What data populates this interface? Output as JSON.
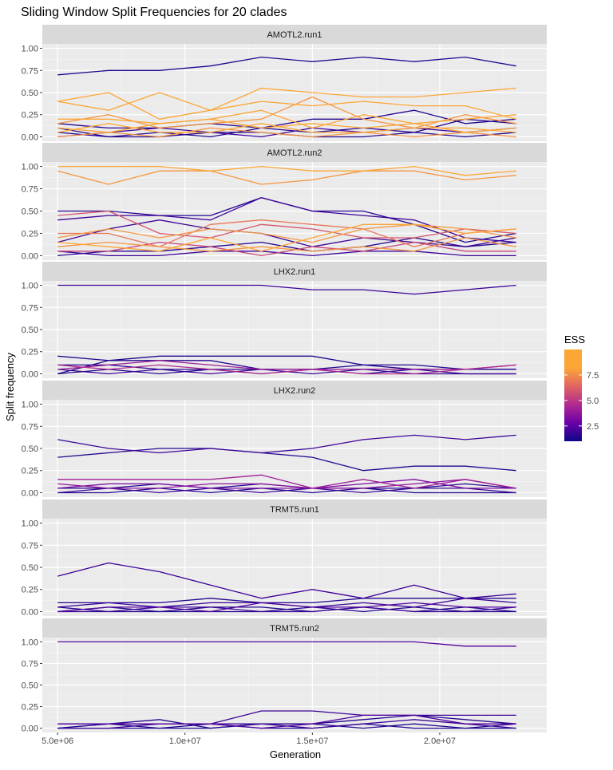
{
  "chart_data": {
    "type": "line",
    "title": "Sliding Window Split Frequencies for 20 clades",
    "xlabel": "Generation",
    "ylabel": "Split frequency",
    "xlim": [
      4400000,
      24200000
    ],
    "ylim": [
      -0.05,
      1.05
    ],
    "x_ticks": [
      5000000,
      10000000,
      15000000,
      20000000
    ],
    "x_tick_labels": [
      "5.0e+06",
      "1.0e+07",
      "1.5e+07",
      "2.0e+07"
    ],
    "y_ticks": [
      0,
      0.25,
      0.5,
      0.75,
      1
    ],
    "y_tick_labels": [
      "0.00",
      "0.25",
      "0.50",
      "0.75",
      "1.00"
    ],
    "grid": true,
    "x": [
      5000000,
      7000000,
      9000000,
      11000000,
      13000000,
      15000000,
      17000000,
      19000000,
      21000000,
      23000000
    ],
    "legend": {
      "title": "ESS",
      "placement": "right",
      "colorbar_ticks": [
        2.5,
        5.0,
        7.5
      ],
      "colorbar_range": [
        1,
        10
      ],
      "colors": [
        "#0d0887",
        "#6a00a8",
        "#b12a90",
        "#e16462",
        "#fca636",
        "#f0f921"
      ]
    },
    "panels": [
      {
        "strip": "AMOTL2.run1",
        "series": [
          {
            "ess": 1.5,
            "values": [
              0.7,
              0.75,
              0.75,
              0.8,
              0.9,
              0.85,
              0.9,
              0.85,
              0.9,
              0.8
            ]
          },
          {
            "ess": 9.0,
            "values": [
              0.4,
              0.5,
              0.2,
              0.3,
              0.55,
              0.5,
              0.45,
              0.45,
              0.5,
              0.55
            ]
          },
          {
            "ess": 9.0,
            "values": [
              0.4,
              0.3,
              0.5,
              0.3,
              0.4,
              0.35,
              0.4,
              0.35,
              0.35,
              0.2
            ]
          },
          {
            "ess": 9.0,
            "values": [
              0.2,
              0.2,
              0.15,
              0.2,
              0.3,
              0.1,
              0.25,
              0.15,
              0.2,
              0.25
            ]
          },
          {
            "ess": 8.5,
            "values": [
              0.15,
              0.25,
              0.1,
              0.15,
              0.2,
              0.45,
              0.2,
              0.1,
              0.25,
              0.15
            ]
          },
          {
            "ess": 9.0,
            "values": [
              0.1,
              0.05,
              0.15,
              0.2,
              0.1,
              0.15,
              0.1,
              0.15,
              0.05,
              0.1
            ]
          },
          {
            "ess": 9.0,
            "values": [
              0.05,
              0.15,
              0.05,
              0.05,
              0.15,
              0.05,
              0.05,
              0.1,
              0.1,
              0.05
            ]
          },
          {
            "ess": 8.5,
            "values": [
              0.0,
              0.05,
              0.0,
              0.1,
              0.05,
              0.0,
              0.05,
              0.0,
              0.05,
              0.0
            ]
          },
          {
            "ess": 1.5,
            "values": [
              0.15,
              0.1,
              0.1,
              0.15,
              0.1,
              0.2,
              0.2,
              0.3,
              0.15,
              0.2
            ]
          },
          {
            "ess": 1.5,
            "values": [
              0.05,
              0.0,
              0.05,
              0.0,
              0.1,
              0.05,
              0.1,
              0.05,
              0.2,
              0.15
            ]
          },
          {
            "ess": 2.0,
            "values": [
              0.0,
              0.05,
              0.1,
              0.05,
              0.0,
              0.1,
              0.05,
              0.1,
              0.05,
              0.1
            ]
          },
          {
            "ess": 1.5,
            "values": [
              0.1,
              0.0,
              0.0,
              0.05,
              0.05,
              0.0,
              0.0,
              0.05,
              0.0,
              0.05
            ]
          }
        ]
      },
      {
        "strip": "AMOTL2.run2",
        "series": [
          {
            "ess": 9.0,
            "values": [
              1.0,
              1.0,
              1.0,
              0.95,
              1.0,
              0.95,
              0.95,
              1.0,
              0.9,
              0.95
            ]
          },
          {
            "ess": 8.5,
            "values": [
              0.95,
              0.8,
              0.95,
              0.95,
              0.8,
              0.85,
              0.95,
              0.95,
              0.85,
              0.9
            ]
          },
          {
            "ess": 1.5,
            "values": [
              0.5,
              0.5,
              0.45,
              0.45,
              0.65,
              0.5,
              0.5,
              0.35,
              0.15,
              0.25
            ]
          },
          {
            "ess": 2.0,
            "values": [
              0.4,
              0.45,
              0.45,
              0.4,
              0.65,
              0.5,
              0.45,
              0.4,
              0.2,
              0.15
            ]
          },
          {
            "ess": 6.5,
            "values": [
              0.45,
              0.5,
              0.25,
              0.2,
              0.35,
              0.3,
              0.2,
              0.2,
              0.3,
              0.25
            ]
          },
          {
            "ess": 7.5,
            "values": [
              0.25,
              0.25,
              0.1,
              0.35,
              0.4,
              0.35,
              0.3,
              0.1,
              0.25,
              0.3
            ]
          },
          {
            "ess": 8.5,
            "values": [
              0.2,
              0.3,
              0.2,
              0.3,
              0.25,
              0.15,
              0.3,
              0.35,
              0.3,
              0.2
            ]
          },
          {
            "ess": 9.0,
            "values": [
              0.15,
              0.1,
              0.05,
              0.2,
              0.05,
              0.2,
              0.35,
              0.35,
              0.25,
              0.3
            ]
          },
          {
            "ess": 8.5,
            "values": [
              0.1,
              0.15,
              0.1,
              0.05,
              0.1,
              0.05,
              0.1,
              0.05,
              0.2,
              0.1
            ]
          },
          {
            "ess": 6.0,
            "values": [
              0.05,
              0.05,
              0.15,
              0.1,
              0.0,
              0.1,
              0.05,
              0.15,
              0.05,
              0.05
            ]
          },
          {
            "ess": 2.0,
            "values": [
              0.15,
              0.3,
              0.4,
              0.3,
              0.25,
              0.1,
              0.2,
              0.15,
              0.1,
              0.2
            ]
          },
          {
            "ess": 1.5,
            "values": [
              0.0,
              0.05,
              0.05,
              0.1,
              0.15,
              0.05,
              0.1,
              0.2,
              0.1,
              0.15
            ]
          },
          {
            "ess": 2.0,
            "values": [
              0.05,
              0.0,
              0.0,
              0.05,
              0.05,
              0.0,
              0.05,
              0.05,
              0.0,
              0.0
            ]
          }
        ]
      },
      {
        "strip": "LHX2.run1",
        "series": [
          {
            "ess": 2.0,
            "values": [
              1.0,
              1.0,
              1.0,
              1.0,
              1.0,
              0.95,
              0.95,
              0.9,
              0.95,
              1.0
            ]
          },
          {
            "ess": 1.5,
            "values": [
              0.2,
              0.15,
              0.2,
              0.2,
              0.2,
              0.2,
              0.1,
              0.1,
              0.05,
              0.05
            ]
          },
          {
            "ess": 1.5,
            "values": [
              0.0,
              0.15,
              0.15,
              0.15,
              0.05,
              0.05,
              0.1,
              0.05,
              0.05,
              0.05
            ]
          },
          {
            "ess": 4.5,
            "values": [
              0.05,
              0.1,
              0.15,
              0.1,
              0.05,
              0.05,
              0.05,
              0.05,
              0.05,
              0.1
            ]
          },
          {
            "ess": 5.0,
            "values": [
              0.1,
              0.05,
              0.1,
              0.05,
              0.0,
              0.05,
              0.0,
              0.0,
              0.05,
              0.1
            ]
          },
          {
            "ess": 1.5,
            "values": [
              0.1,
              0.1,
              0.05,
              0.05,
              0.05,
              0.05,
              0.05,
              0.05,
              0.05,
              0.05
            ]
          },
          {
            "ess": 2.0,
            "values": [
              0.05,
              0.0,
              0.05,
              0.0,
              0.05,
              0.0,
              0.05,
              0.0,
              0.0,
              0.0
            ]
          },
          {
            "ess": 1.5,
            "values": [
              0.0,
              0.05,
              0.0,
              0.05,
              0.0,
              0.05,
              0.0,
              0.05,
              0.0,
              0.0
            ]
          }
        ]
      },
      {
        "strip": "LHX2.run2",
        "series": [
          {
            "ess": 2.0,
            "values": [
              0.6,
              0.5,
              0.45,
              0.5,
              0.45,
              0.5,
              0.6,
              0.65,
              0.6,
              0.65
            ]
          },
          {
            "ess": 1.5,
            "values": [
              0.4,
              0.45,
              0.5,
              0.5,
              0.45,
              0.4,
              0.25,
              0.3,
              0.3,
              0.25
            ]
          },
          {
            "ess": 4.5,
            "values": [
              0.15,
              0.15,
              0.15,
              0.15,
              0.2,
              0.05,
              0.15,
              0.05,
              0.15,
              0.05
            ]
          },
          {
            "ess": 3.5,
            "values": [
              0.05,
              0.1,
              0.1,
              0.05,
              0.05,
              0.05,
              0.1,
              0.15,
              0.05,
              0.05
            ]
          },
          {
            "ess": 4.0,
            "values": [
              0.1,
              0.05,
              0.05,
              0.1,
              0.1,
              0.05,
              0.05,
              0.1,
              0.15,
              0.05
            ]
          },
          {
            "ess": 1.5,
            "values": [
              0.05,
              0.05,
              0.1,
              0.05,
              0.1,
              0.05,
              0.05,
              0.05,
              0.1,
              0.05
            ]
          },
          {
            "ess": 2.0,
            "values": [
              0.0,
              0.05,
              0.0,
              0.05,
              0.0,
              0.05,
              0.0,
              0.05,
              0.05,
              0.0
            ]
          },
          {
            "ess": 1.5,
            "values": [
              0.0,
              0.0,
              0.05,
              0.0,
              0.05,
              0.0,
              0.05,
              0.0,
              0.0,
              0.0
            ]
          }
        ]
      },
      {
        "strip": "TRMT5.run1",
        "series": [
          {
            "ess": 2.0,
            "values": [
              0.4,
              0.55,
              0.45,
              0.3,
              0.15,
              0.25,
              0.15,
              0.3,
              0.15,
              0.2
            ]
          },
          {
            "ess": 1.5,
            "values": [
              0.1,
              0.1,
              0.1,
              0.15,
              0.1,
              0.1,
              0.15,
              0.15,
              0.15,
              0.15
            ]
          },
          {
            "ess": 2.0,
            "values": [
              0.05,
              0.1,
              0.05,
              0.1,
              0.1,
              0.05,
              0.1,
              0.05,
              0.15,
              0.1
            ]
          },
          {
            "ess": 2.5,
            "values": [
              0.0,
              0.05,
              0.05,
              0.0,
              0.1,
              0.05,
              0.05,
              0.1,
              0.05,
              0.05
            ]
          },
          {
            "ess": 1.5,
            "values": [
              0.05,
              0.0,
              0.0,
              0.05,
              0.05,
              0.0,
              0.05,
              0.0,
              0.05,
              0.0
            ]
          },
          {
            "ess": 1.5,
            "values": [
              0.0,
              0.05,
              0.0,
              0.0,
              0.0,
              0.05,
              0.0,
              0.05,
              0.0,
              0.0
            ]
          },
          {
            "ess": 2.0,
            "values": [
              0.0,
              0.0,
              0.05,
              0.05,
              0.0,
              0.0,
              0.05,
              0.0,
              0.0,
              0.05
            ]
          }
        ]
      },
      {
        "strip": "TRMT5.run2",
        "series": [
          {
            "ess": 2.5,
            "values": [
              1.0,
              1.0,
              1.0,
              1.0,
              1.0,
              1.0,
              1.0,
              1.0,
              0.95,
              0.95
            ]
          },
          {
            "ess": 2.0,
            "values": [
              0.05,
              0.05,
              0.05,
              0.05,
              0.2,
              0.2,
              0.15,
              0.15,
              0.15,
              0.15
            ]
          },
          {
            "ess": 1.5,
            "values": [
              0.0,
              0.05,
              0.1,
              0.0,
              0.05,
              0.05,
              0.1,
              0.15,
              0.1,
              0.05
            ]
          },
          {
            "ess": 2.5,
            "values": [
              0.05,
              0.05,
              0.05,
              0.05,
              0.0,
              0.05,
              0.15,
              0.15,
              0.05,
              0.05
            ]
          },
          {
            "ess": 2.0,
            "values": [
              0.0,
              0.0,
              0.05,
              0.05,
              0.05,
              0.0,
              0.05,
              0.1,
              0.05,
              0.0
            ]
          },
          {
            "ess": 1.5,
            "values": [
              0.0,
              0.05,
              0.0,
              0.0,
              0.05,
              0.05,
              0.0,
              0.05,
              0.0,
              0.05
            ]
          },
          {
            "ess": 1.5,
            "values": [
              0.0,
              0.0,
              0.0,
              0.05,
              0.0,
              0.0,
              0.05,
              0.0,
              0.0,
              0.0
            ]
          }
        ]
      }
    ]
  }
}
